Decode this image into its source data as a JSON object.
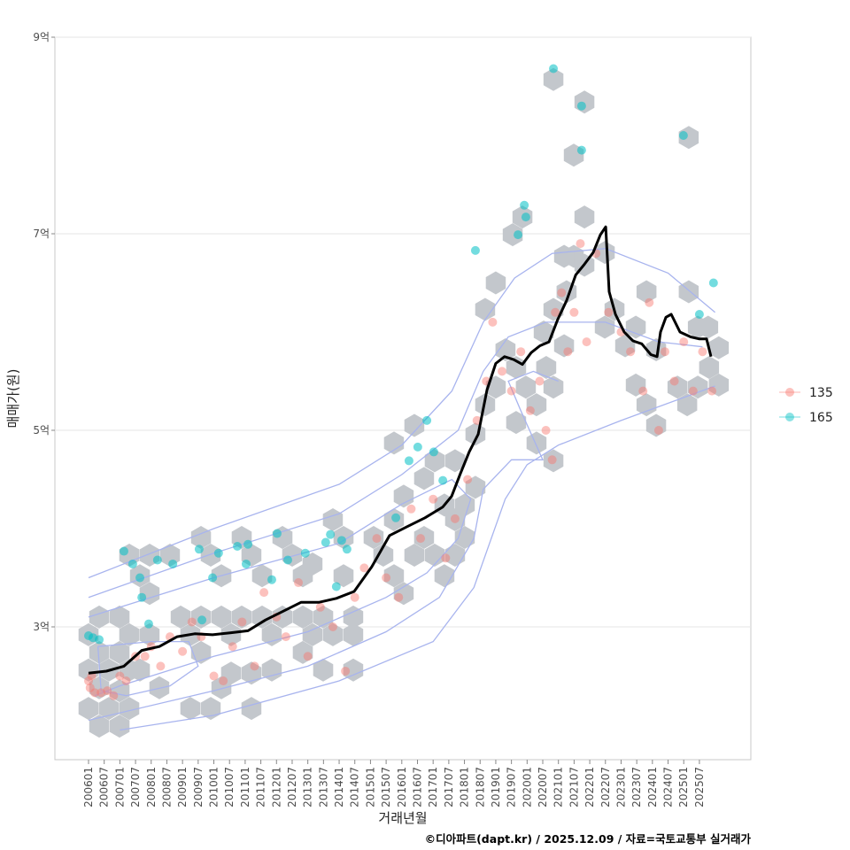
{
  "chart_data": {
    "type": "scatter",
    "title": "",
    "xlabel": "거래년월",
    "ylabel": "매매가(원)",
    "caption": "©디아파트(dapt.kr) / 2025.12.09 / 자료=국토교통부 실거래가",
    "xlim": [
      2005.0,
      2027.2
    ],
    "ylim": [
      1.65,
      9.0
    ],
    "y_ticks": [
      {
        "value": 3,
        "label": "3억"
      },
      {
        "value": 5,
        "label": "5억"
      },
      {
        "value": 7,
        "label": "7억"
      },
      {
        "value": 9,
        "label": "9억"
      }
    ],
    "x_ticks": [
      "200601",
      "200607",
      "200701",
      "200707",
      "200801",
      "200807",
      "200901",
      "200907",
      "201001",
      "201007",
      "201101",
      "201107",
      "201201",
      "201207",
      "201301",
      "201307",
      "201401",
      "201407",
      "201501",
      "201507",
      "201601",
      "201607",
      "201701",
      "201707",
      "201801",
      "201807",
      "201901",
      "201907",
      "202001",
      "202007",
      "202101",
      "202107",
      "202201",
      "202207",
      "202301",
      "202307",
      "202401",
      "202407",
      "202501",
      "202507"
    ],
    "grid": true,
    "legend": {
      "position": "right",
      "entries": [
        {
          "name": "135",
          "color": "#F8766D"
        },
        {
          "name": "165",
          "color": "#00BFC4"
        }
      ]
    },
    "colors": {
      "hex": "#c3c7cc",
      "contour": "#a8b4ee",
      "trend": "#000000",
      "group_135": "#F8766D",
      "group_165": "#00BFC4"
    },
    "hexbins": [
      [
        2006.0,
        2.92
      ],
      [
        2006.0,
        2.56
      ],
      [
        2006.0,
        2.17
      ],
      [
        2006.34,
        3.1
      ],
      [
        2006.34,
        2.74
      ],
      [
        2006.34,
        2.38
      ],
      [
        2006.34,
        1.99
      ],
      [
        2006.99,
        3.1
      ],
      [
        2006.99,
        2.74
      ],
      [
        2006.99,
        2.35
      ],
      [
        2006.99,
        1.99
      ],
      [
        2006.65,
        2.56
      ],
      [
        2006.65,
        2.17
      ],
      [
        2007.3,
        2.92
      ],
      [
        2007.3,
        2.56
      ],
      [
        2007.3,
        2.17
      ],
      [
        2007.64,
        2.56
      ],
      [
        2007.95,
        2.92
      ],
      [
        2008.26,
        2.38
      ],
      [
        2007.3,
        3.73
      ],
      [
        2007.95,
        3.73
      ],
      [
        2007.64,
        3.52
      ],
      [
        2007.95,
        3.34
      ],
      [
        2008.6,
        3.73
      ],
      [
        2008.94,
        3.1
      ],
      [
        2009.25,
        2.92
      ],
      [
        2009.59,
        3.1
      ],
      [
        2009.59,
        2.74
      ],
      [
        2009.25,
        2.17
      ],
      [
        2009.9,
        2.17
      ],
      [
        2009.59,
        3.91
      ],
      [
        2010.24,
        3.52
      ],
      [
        2009.9,
        3.73
      ],
      [
        2010.24,
        3.1
      ],
      [
        2010.55,
        2.92
      ],
      [
        2010.89,
        3.1
      ],
      [
        2010.55,
        2.53
      ],
      [
        2010.24,
        2.38
      ],
      [
        2011.2,
        2.53
      ],
      [
        2010.89,
        3.91
      ],
      [
        2011.2,
        3.73
      ],
      [
        2011.54,
        3.52
      ],
      [
        2011.54,
        3.1
      ],
      [
        2011.85,
        2.92
      ],
      [
        2012.19,
        3.1
      ],
      [
        2011.85,
        2.56
      ],
      [
        2011.2,
        2.17
      ],
      [
        2012.19,
        3.91
      ],
      [
        2012.5,
        3.73
      ],
      [
        2012.84,
        3.52
      ],
      [
        2013.15,
        3.64
      ],
      [
        2012.84,
        3.1
      ],
      [
        2013.15,
        2.92
      ],
      [
        2012.84,
        2.74
      ],
      [
        2013.49,
        3.1
      ],
      [
        2013.8,
        2.92
      ],
      [
        2013.49,
        2.56
      ],
      [
        2013.8,
        4.09
      ],
      [
        2014.14,
        3.91
      ],
      [
        2014.14,
        3.52
      ],
      [
        2014.45,
        3.1
      ],
      [
        2014.45,
        2.56
      ],
      [
        2014.45,
        2.92
      ],
      [
        2015.1,
        3.91
      ],
      [
        2015.41,
        3.73
      ],
      [
        2015.75,
        4.09
      ],
      [
        2015.75,
        3.52
      ],
      [
        2016.06,
        3.34
      ],
      [
        2016.4,
        3.73
      ],
      [
        2016.71,
        3.91
      ],
      [
        2017.05,
        3.73
      ],
      [
        2017.36,
        4.24
      ],
      [
        2017.36,
        3.52
      ],
      [
        2017.7,
        4.09
      ],
      [
        2018.01,
        3.91
      ],
      [
        2017.7,
        3.73
      ],
      [
        2018.01,
        4.24
      ],
      [
        2016.06,
        4.33
      ],
      [
        2016.71,
        4.51
      ],
      [
        2017.05,
        4.69
      ],
      [
        2015.75,
        4.87
      ],
      [
        2016.4,
        5.05
      ],
      [
        2017.7,
        4.69
      ],
      [
        2018.35,
        4.42
      ],
      [
        2018.35,
        4.96
      ],
      [
        2018.66,
        5.26
      ],
      [
        2019.0,
        5.44
      ],
      [
        2018.66,
        6.23
      ],
      [
        2019.0,
        6.5
      ],
      [
        2019.31,
        5.82
      ],
      [
        2019.65,
        5.64
      ],
      [
        2019.96,
        5.44
      ],
      [
        2019.65,
        5.08
      ],
      [
        2020.3,
        5.26
      ],
      [
        2020.3,
        4.87
      ],
      [
        2020.61,
        5.64
      ],
      [
        2020.84,
        4.69
      ],
      [
        2020.84,
        5.44
      ],
      [
        2020.53,
        6.0
      ],
      [
        2020.84,
        6.23
      ],
      [
        2021.18,
        5.86
      ],
      [
        2021.26,
        6.41
      ],
      [
        2021.49,
        6.77
      ],
      [
        2021.83,
        6.68
      ],
      [
        2021.18,
        6.77
      ],
      [
        2021.83,
        7.17
      ],
      [
        2021.49,
        7.8
      ],
      [
        2021.83,
        8.34
      ],
      [
        2020.84,
        8.57
      ],
      [
        2019.85,
        7.17
      ],
      [
        2019.54,
        6.99
      ],
      [
        2022.48,
        6.05
      ],
      [
        2022.79,
        6.23
      ],
      [
        2023.13,
        5.86
      ],
      [
        2023.47,
        6.05
      ],
      [
        2023.81,
        6.41
      ],
      [
        2023.47,
        5.46
      ],
      [
        2023.81,
        5.26
      ],
      [
        2024.12,
        5.05
      ],
      [
        2024.12,
        5.82
      ],
      [
        2024.8,
        5.44
      ],
      [
        2025.11,
        5.26
      ],
      [
        2025.45,
        5.44
      ],
      [
        2025.81,
        5.64
      ],
      [
        2025.45,
        6.05
      ],
      [
        2025.16,
        6.41
      ],
      [
        2025.78,
        6.05
      ],
      [
        2026.12,
        5.46
      ],
      [
        2026.12,
        5.84
      ],
      [
        2025.16,
        7.98
      ],
      [
        2022.48,
        6.81
      ]
    ],
    "points_165": [
      [
        2006.0,
        2.91
      ],
      [
        2006.14,
        2.89
      ],
      [
        2006.34,
        2.87
      ],
      [
        2007.13,
        3.77
      ],
      [
        2007.41,
        3.64
      ],
      [
        2007.64,
        3.5
      ],
      [
        2007.7,
        3.3
      ],
      [
        2007.92,
        3.03
      ],
      [
        2008.2,
        3.68
      ],
      [
        2008.69,
        3.64
      ],
      [
        2009.53,
        3.79
      ],
      [
        2009.62,
        3.07
      ],
      [
        2009.96,
        3.5
      ],
      [
        2010.15,
        3.75
      ],
      [
        2010.75,
        3.82
      ],
      [
        2011.09,
        3.84
      ],
      [
        2011.03,
        3.64
      ],
      [
        2011.85,
        3.48
      ],
      [
        2012.02,
        3.95
      ],
      [
        2012.36,
        3.68
      ],
      [
        2012.92,
        3.75
      ],
      [
        2013.57,
        3.86
      ],
      [
        2013.72,
        3.94
      ],
      [
        2014.08,
        3.88
      ],
      [
        2014.25,
        3.79
      ],
      [
        2013.91,
        3.41
      ],
      [
        2015.81,
        4.11
      ],
      [
        2016.23,
        4.69
      ],
      [
        2016.51,
        4.83
      ],
      [
        2016.8,
        5.1
      ],
      [
        2017.02,
        4.78
      ],
      [
        2017.31,
        4.49
      ],
      [
        2018.35,
        6.83
      ],
      [
        2019.71,
        6.99
      ],
      [
        2019.91,
        7.29
      ],
      [
        2019.96,
        7.17
      ],
      [
        2020.84,
        8.68
      ],
      [
        2021.74,
        8.3
      ],
      [
        2021.74,
        7.85
      ],
      [
        2024.99,
        8.0
      ],
      [
        2025.5,
        6.18
      ],
      [
        2025.95,
        6.5
      ]
    ],
    "points_135": [
      [
        2006.0,
        2.45
      ],
      [
        2006.05,
        2.38
      ],
      [
        2006.1,
        2.5
      ],
      [
        2006.2,
        2.33
      ],
      [
        2006.4,
        2.33
      ],
      [
        2006.6,
        2.35
      ],
      [
        2006.8,
        2.3
      ],
      [
        2007.0,
        2.5
      ],
      [
        2007.2,
        2.45
      ],
      [
        2007.5,
        2.7
      ],
      [
        2007.8,
        2.7
      ],
      [
        2008.0,
        2.8
      ],
      [
        2008.3,
        2.6
      ],
      [
        2008.6,
        2.9
      ],
      [
        2009.0,
        2.75
      ],
      [
        2009.3,
        3.05
      ],
      [
        2009.6,
        2.9
      ],
      [
        2010.0,
        2.5
      ],
      [
        2010.3,
        2.45
      ],
      [
        2010.6,
        2.8
      ],
      [
        2010.9,
        3.05
      ],
      [
        2011.3,
        2.6
      ],
      [
        2011.6,
        3.35
      ],
      [
        2012.0,
        3.1
      ],
      [
        2012.3,
        2.9
      ],
      [
        2012.7,
        3.45
      ],
      [
        2013.0,
        2.7
      ],
      [
        2013.4,
        3.2
      ],
      [
        2013.8,
        3.0
      ],
      [
        2014.2,
        2.55
      ],
      [
        2014.5,
        3.3
      ],
      [
        2014.8,
        3.6
      ],
      [
        2015.2,
        3.9
      ],
      [
        2015.5,
        3.5
      ],
      [
        2015.9,
        3.3
      ],
      [
        2016.3,
        4.2
      ],
      [
        2016.6,
        3.9
      ],
      [
        2017.0,
        4.3
      ],
      [
        2017.4,
        3.7
      ],
      [
        2017.7,
        4.1
      ],
      [
        2018.1,
        4.5
      ],
      [
        2018.4,
        5.1
      ],
      [
        2018.7,
        5.5
      ],
      [
        2018.9,
        6.1
      ],
      [
        2019.2,
        5.6
      ],
      [
        2019.5,
        5.4
      ],
      [
        2019.8,
        5.8
      ],
      [
        2020.1,
        5.2
      ],
      [
        2020.4,
        5.5
      ],
      [
        2020.6,
        5.0
      ],
      [
        2020.8,
        4.7
      ],
      [
        2020.9,
        6.2
      ],
      [
        2021.1,
        6.4
      ],
      [
        2021.3,
        5.8
      ],
      [
        2021.5,
        6.2
      ],
      [
        2021.7,
        6.9
      ],
      [
        2021.9,
        5.9
      ],
      [
        2022.2,
        6.8
      ],
      [
        2022.6,
        6.2
      ],
      [
        2023.0,
        6.0
      ],
      [
        2023.3,
        5.8
      ],
      [
        2023.7,
        5.4
      ],
      [
        2023.9,
        6.3
      ],
      [
        2024.2,
        5.0
      ],
      [
        2024.4,
        5.8
      ],
      [
        2024.7,
        5.5
      ],
      [
        2025.0,
        5.9
      ],
      [
        2025.3,
        5.4
      ],
      [
        2025.6,
        5.8
      ],
      [
        2025.9,
        5.4
      ]
    ],
    "trend": {
      "x": [
        2006.0,
        2006.57,
        2007.13,
        2007.7,
        2008.26,
        2008.83,
        2009.39,
        2009.96,
        2010.52,
        2011.09,
        2011.65,
        2012.22,
        2012.78,
        2013.35,
        2013.91,
        2014.48,
        2015.04,
        2015.61,
        2016.17,
        2016.74,
        2017.31,
        2017.59,
        2017.87,
        2018.15,
        2018.44,
        2018.72,
        2019.0,
        2019.28,
        2019.57,
        2019.85,
        2020.13,
        2020.41,
        2020.7,
        2020.98,
        2021.26,
        2021.55,
        2021.83,
        2022.11,
        2022.34,
        2022.51,
        2022.62,
        2022.82,
        2023.1,
        2023.38,
        2023.66,
        2023.95,
        2024.15,
        2024.26,
        2024.43,
        2024.6,
        2024.88,
        2025.22,
        2025.5,
        2025.73,
        2025.87
      ],
      "y": [
        2.53,
        2.55,
        2.6,
        2.76,
        2.8,
        2.9,
        2.93,
        2.92,
        2.94,
        2.96,
        3.07,
        3.16,
        3.25,
        3.25,
        3.29,
        3.36,
        3.61,
        3.93,
        4.02,
        4.11,
        4.22,
        4.33,
        4.56,
        4.78,
        4.96,
        5.41,
        5.68,
        5.75,
        5.72,
        5.67,
        5.79,
        5.86,
        5.9,
        6.13,
        6.32,
        6.58,
        6.69,
        6.81,
        6.99,
        7.07,
        6.41,
        6.18,
        6.0,
        5.91,
        5.88,
        5.77,
        5.75,
        6.0,
        6.15,
        6.18,
        6.0,
        5.95,
        5.93,
        5.93,
        5.75
      ]
    },
    "density_contours": [
      [
        [
          2006.0,
          3.5
        ],
        [
          2010,
          4.0
        ],
        [
          2014,
          4.45
        ],
        [
          2016,
          4.85
        ],
        [
          2017.6,
          5.4
        ],
        [
          2018.6,
          6.1
        ],
        [
          2019.6,
          6.55
        ],
        [
          2020.8,
          6.8
        ],
        [
          2022.5,
          6.85
        ],
        [
          2024.5,
          6.6
        ],
        [
          2026.0,
          6.2
        ]
      ],
      [
        [
          2006.0,
          3.3
        ],
        [
          2010,
          3.75
        ],
        [
          2014,
          4.15
        ],
        [
          2016,
          4.55
        ],
        [
          2017.8,
          5.0
        ],
        [
          2018.6,
          5.6
        ],
        [
          2019.4,
          5.95
        ],
        [
          2020.6,
          6.1
        ],
        [
          2022.5,
          6.1
        ],
        [
          2024.2,
          5.9
        ],
        [
          2025.6,
          5.85
        ]
      ],
      [
        [
          2006.0,
          3.1
        ],
        [
          2010,
          3.5
        ],
        [
          2014,
          3.85
        ],
        [
          2016,
          4.25
        ],
        [
          2017.6,
          4.5
        ],
        [
          2018.2,
          4.3
        ],
        [
          2017.8,
          3.9
        ],
        [
          2016.8,
          3.55
        ],
        [
          2015.5,
          3.3
        ],
        [
          2013,
          2.95
        ],
        [
          2010,
          2.7
        ],
        [
          2007,
          2.4
        ],
        [
          2006.2,
          2.3
        ]
      ],
      [
        [
          2006.3,
          2.8
        ],
        [
          2008,
          2.85
        ],
        [
          2009.2,
          2.85
        ],
        [
          2009.5,
          2.6
        ],
        [
          2008.6,
          2.4
        ],
        [
          2007.2,
          2.3
        ],
        [
          2006.4,
          2.35
        ],
        [
          2006.3,
          2.8
        ]
      ],
      [
        [
          2006.0,
          2.05
        ],
        [
          2010,
          2.35
        ],
        [
          2013,
          2.6
        ],
        [
          2015.5,
          2.95
        ],
        [
          2017.2,
          3.3
        ],
        [
          2018.3,
          3.9
        ],
        [
          2018.6,
          4.4
        ],
        [
          2019.5,
          4.7
        ],
        [
          2020.5,
          4.7
        ],
        [
          2019.8,
          5.2
        ],
        [
          2019.4,
          5.5
        ],
        [
          2020.2,
          5.6
        ],
        [
          2021,
          5.5
        ]
      ],
      [
        [
          2007.0,
          1.95
        ],
        [
          2010,
          2.1
        ],
        [
          2014,
          2.45
        ],
        [
          2017,
          2.85
        ],
        [
          2018.3,
          3.4
        ],
        [
          2019.3,
          4.3
        ],
        [
          2020.0,
          4.65
        ],
        [
          2021.0,
          4.85
        ],
        [
          2023.0,
          5.1
        ],
        [
          2026.0,
          5.45
        ]
      ]
    ]
  }
}
